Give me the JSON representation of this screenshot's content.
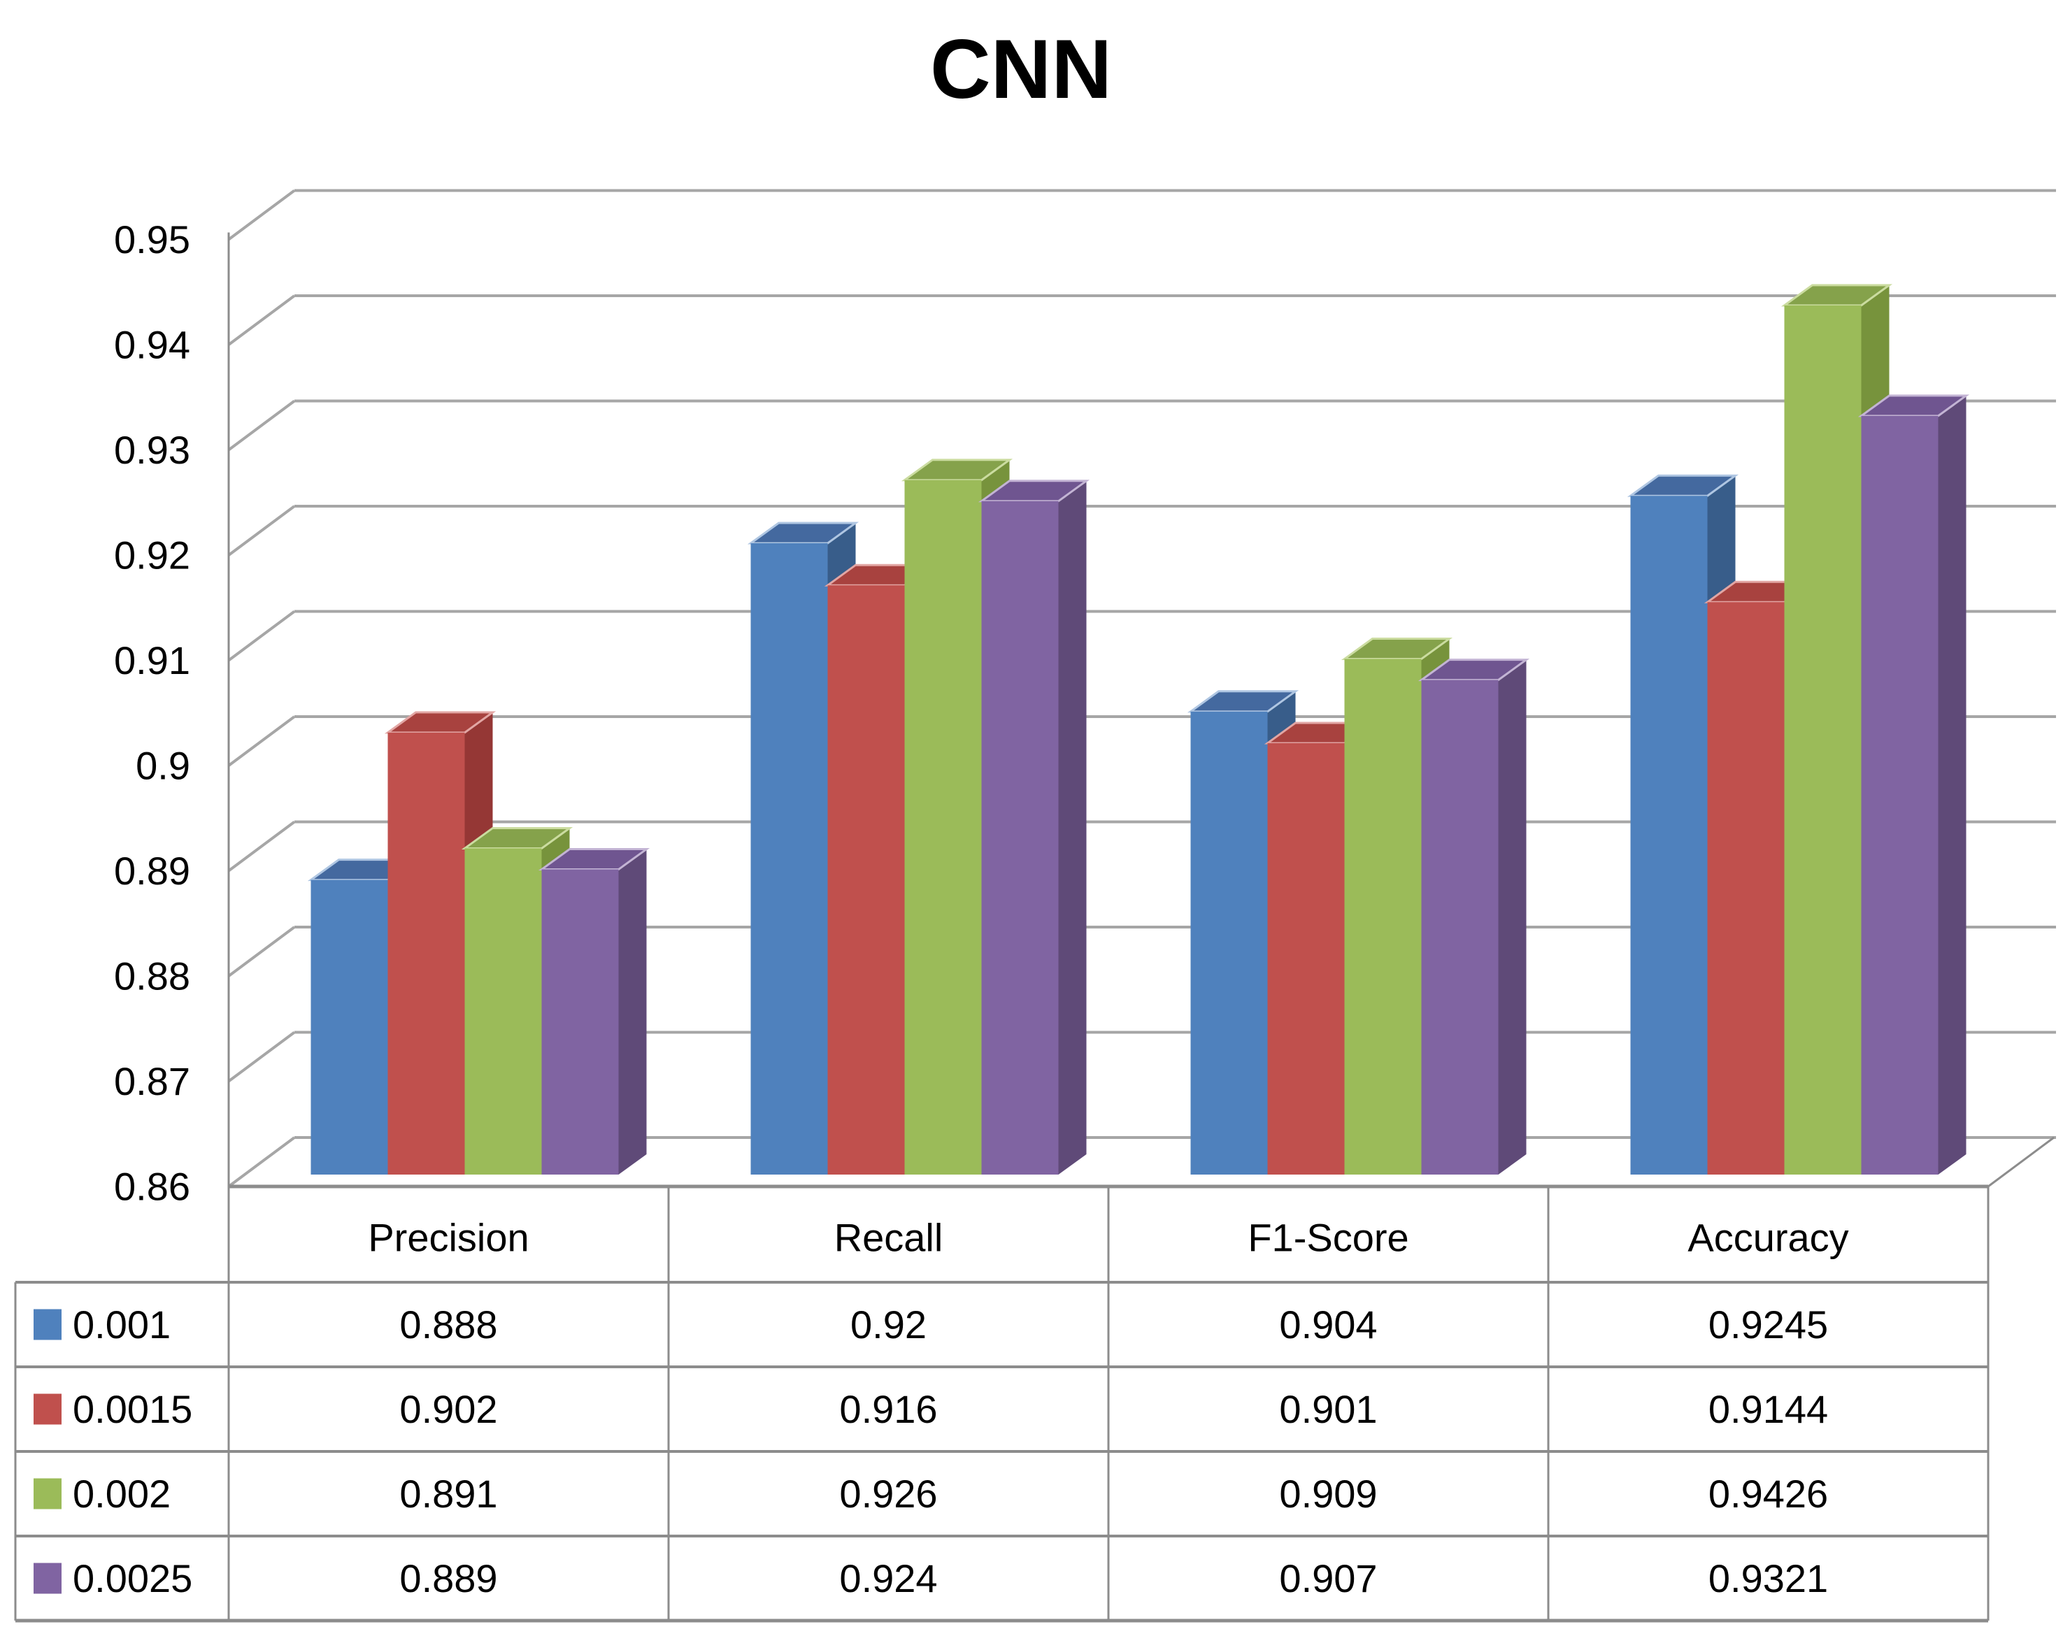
{
  "chart_data": {
    "type": "bar",
    "projection": "3d",
    "title": "CNN",
    "categories": [
      "Precision",
      "Recall",
      "F1-Score",
      "Accuracy"
    ],
    "series": [
      {
        "name": "0.001",
        "values": [
          0.888,
          0.92,
          0.904,
          0.9245
        ],
        "labels": [
          "0.888",
          "0.92",
          "0.904",
          "0.9245"
        ],
        "color": "#4F81BD",
        "top": "#44699F",
        "side": "#385D8A",
        "light": "#AFC6E2"
      },
      {
        "name": "0.0015",
        "values": [
          0.902,
          0.916,
          0.901,
          0.9144
        ],
        "labels": [
          "0.902",
          "0.916",
          "0.901",
          "0.9144"
        ],
        "color": "#C0504D",
        "top": "#A8423F",
        "side": "#953735",
        "light": "#E2A6A4"
      },
      {
        "name": "0.002",
        "values": [
          0.891,
          0.926,
          0.909,
          0.9426
        ],
        "labels": [
          "0.891",
          "0.926",
          "0.909",
          "0.9426"
        ],
        "color": "#9BBB59",
        "top": "#85A24B",
        "side": "#77933C",
        "light": "#CBDCA0"
      },
      {
        "name": "0.0025",
        "values": [
          0.889,
          0.924,
          0.907,
          0.9321
        ],
        "labels": [
          "0.889",
          "0.924",
          "0.907",
          "0.9321"
        ],
        "color": "#8064A2",
        "top": "#6F5590",
        "side": "#5F4A78",
        "light": "#C3B4D4"
      }
    ],
    "y_axis": {
      "min": 0.86,
      "max": 0.95,
      "step": 0.01,
      "tick_labels": [
        "0.86",
        "0.87",
        "0.88",
        "0.89",
        "0.9",
        "0.91",
        "0.92",
        "0.93",
        "0.94",
        "0.95"
      ]
    },
    "grid": true,
    "legend_position": "table-left"
  },
  "colors": {
    "background": "#FFFFFF",
    "text": "#000000",
    "gridline": "#A6A6A6",
    "axis": "#8C8C8C",
    "table_border": "#8C8C8C"
  }
}
